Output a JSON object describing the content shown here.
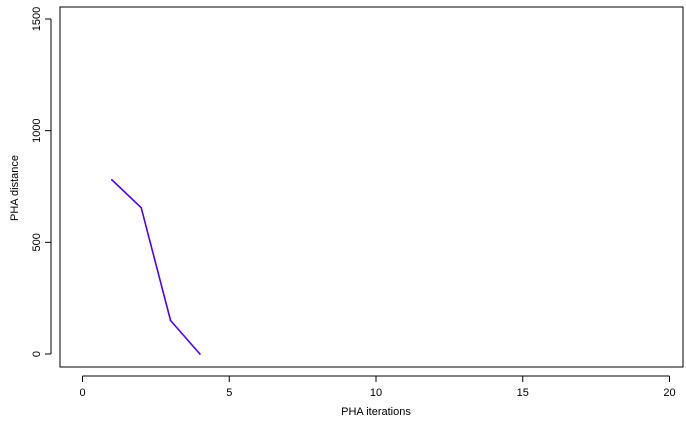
{
  "chart_data": {
    "type": "line",
    "title": "",
    "xlabel": "PHA iterations",
    "ylabel": "PHA distance",
    "xlim": [
      0,
      20
    ],
    "ylim": [
      0,
      1500
    ],
    "xticks": [
      0,
      5,
      10,
      15,
      20
    ],
    "yticks": [
      0,
      500,
      1000,
      1500
    ],
    "x_tick_labels": [
      "0",
      "5",
      "10",
      "15",
      "20"
    ],
    "y_tick_labels": [
      "0",
      "500",
      "1000",
      "1500"
    ],
    "grid": false,
    "legend": "none",
    "series": [
      {
        "x": [
          1,
          2,
          3,
          4
        ],
        "y": [
          780,
          655,
          150,
          0
        ],
        "color": "#4f00ff"
      }
    ]
  }
}
